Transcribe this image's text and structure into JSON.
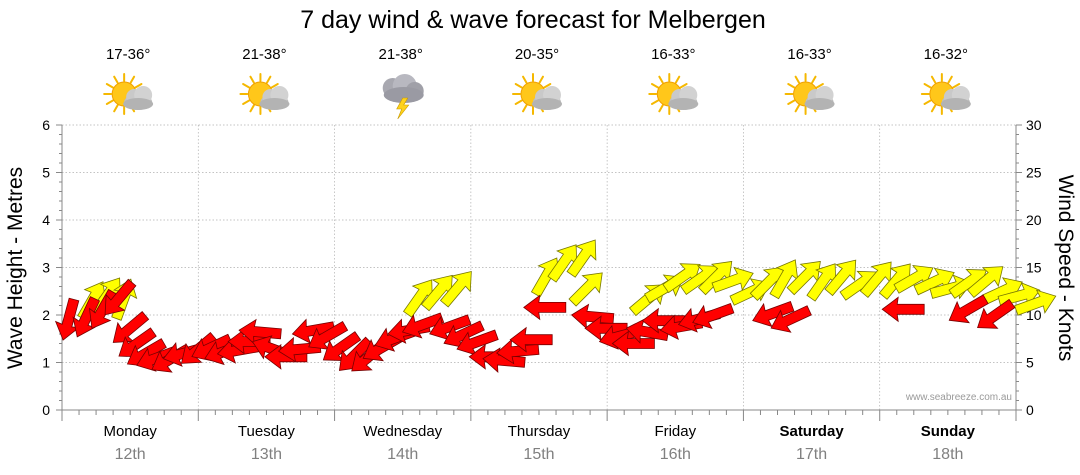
{
  "chart_data": {
    "type": "line",
    "title": "7 day wind & wave forecast for Melbergen",
    "y_left_label": "Wave Height - Metres",
    "y_right_label": "Wind Speed - Knots",
    "y_left_ticks": [
      "0",
      "1",
      "2",
      "3",
      "4",
      "5",
      "6"
    ],
    "y_right_ticks": [
      "0",
      "5",
      "10",
      "15",
      "20",
      "25",
      "30"
    ],
    "ylim_left": [
      0,
      6
    ],
    "ylim_right": [
      0,
      30
    ],
    "grid": true,
    "watermark": "www.seabreeze.com.au",
    "days": [
      {
        "day": "Monday",
        "date": "12th",
        "temp": "17-36°",
        "icon": "sun-cloud-icon",
        "bold": false
      },
      {
        "day": "Tuesday",
        "date": "13th",
        "temp": "21-38°",
        "icon": "sun-cloud-icon",
        "bold": false
      },
      {
        "day": "Wednesday",
        "date": "14th",
        "temp": "21-38°",
        "icon": "storm-cloud-icon",
        "bold": false
      },
      {
        "day": "Thursday",
        "date": "15th",
        "temp": "20-35°",
        "icon": "sun-cloud-icon",
        "bold": false
      },
      {
        "day": "Friday",
        "date": "16th",
        "temp": "16-33°",
        "icon": "sun-cloud-icon",
        "bold": false
      },
      {
        "day": "Saturday",
        "date": "17th",
        "temp": "16-33°",
        "icon": "sun-cloud-icon",
        "bold": true
      },
      {
        "day": "Sunday",
        "date": "18th",
        "temp": "16-32°",
        "icon": "sun-cloud-icon",
        "bold": true
      }
    ],
    "series": [
      {
        "key": "wind-gust",
        "color": "#ffff00",
        "stroke": "#777700",
        "unit": "knots",
        "points": [
          [
            0.22,
            11.5,
            210
          ],
          [
            0.33,
            12.0,
            215
          ],
          [
            0.45,
            11.6,
            200
          ],
          [
            2.62,
            11.8,
            215
          ],
          [
            2.76,
            12.4,
            220
          ],
          [
            2.9,
            12.8,
            220
          ],
          [
            3.55,
            14.0,
            210
          ],
          [
            3.68,
            15.5,
            215
          ],
          [
            3.82,
            16.0,
            215
          ],
          [
            3.85,
            12.8,
            225
          ],
          [
            4.3,
            11.7,
            230
          ],
          [
            4.42,
            12.8,
            240
          ],
          [
            4.55,
            14.0,
            235
          ],
          [
            4.68,
            13.8,
            235
          ],
          [
            4.8,
            14.0,
            225
          ],
          [
            4.92,
            13.6,
            250
          ],
          [
            5.05,
            12.4,
            245
          ],
          [
            5.18,
            13.4,
            225
          ],
          [
            5.3,
            13.8,
            210
          ],
          [
            5.45,
            14.0,
            225
          ],
          [
            5.58,
            13.5,
            215
          ],
          [
            5.72,
            14.0,
            220
          ],
          [
            5.85,
            13.2,
            235
          ],
          [
            5.98,
            13.8,
            220
          ],
          [
            6.12,
            13.6,
            220
          ],
          [
            6.25,
            13.8,
            240
          ],
          [
            6.4,
            13.5,
            245
          ],
          [
            6.52,
            12.8,
            255
          ],
          [
            6.65,
            13.4,
            235
          ],
          [
            6.78,
            13.6,
            230
          ],
          [
            6.9,
            12.5,
            245
          ],
          [
            7.02,
            12.0,
            255
          ],
          [
            7.14,
            11.2,
            250
          ]
        ]
      },
      {
        "key": "wind-speed",
        "color": "#ff0000",
        "stroke": "#770000",
        "unit": "knots",
        "points": [
          [
            0.05,
            9.6,
            15
          ],
          [
            0.18,
            9.8,
            25
          ],
          [
            0.3,
            10.6,
            30
          ],
          [
            0.42,
            11.8,
            40
          ],
          [
            0.5,
            8.6,
            50
          ],
          [
            0.55,
            7.0,
            55
          ],
          [
            0.62,
            6.0,
            60
          ],
          [
            0.7,
            5.5,
            70
          ],
          [
            0.8,
            5.4,
            60
          ],
          [
            0.9,
            6.0,
            75
          ],
          [
            1.0,
            6.4,
            50
          ],
          [
            1.1,
            6.6,
            65
          ],
          [
            1.2,
            6.2,
            70
          ],
          [
            1.3,
            6.3,
            80
          ],
          [
            1.38,
            7.2,
            90
          ],
          [
            1.46,
            8.2,
            95
          ],
          [
            1.55,
            6.4,
            110
          ],
          [
            1.65,
            5.6,
            90
          ],
          [
            1.75,
            6.4,
            85
          ],
          [
            1.85,
            8.4,
            80
          ],
          [
            1.95,
            7.8,
            60
          ],
          [
            2.05,
            6.6,
            55
          ],
          [
            2.15,
            5.8,
            45
          ],
          [
            2.25,
            5.6,
            50
          ],
          [
            2.35,
            6.6,
            60
          ],
          [
            2.45,
            7.6,
            70
          ],
          [
            2.55,
            8.4,
            80
          ],
          [
            2.65,
            9.0,
            70
          ],
          [
            2.85,
            8.8,
            70
          ],
          [
            2.95,
            8.0,
            65
          ],
          [
            3.05,
            7.2,
            70
          ],
          [
            3.15,
            5.6,
            90
          ],
          [
            3.25,
            5.2,
            95
          ],
          [
            3.35,
            6.2,
            85
          ],
          [
            3.45,
            7.4,
            90
          ],
          [
            3.55,
            10.8,
            90
          ],
          [
            3.9,
            9.8,
            95
          ],
          [
            4.0,
            8.6,
            90
          ],
          [
            4.1,
            7.8,
            75
          ],
          [
            4.2,
            7.0,
            90
          ],
          [
            4.3,
            8.2,
            100
          ],
          [
            4.42,
            9.4,
            90
          ],
          [
            4.55,
            8.8,
            80
          ],
          [
            4.68,
            9.6,
            75
          ],
          [
            4.78,
            10.0,
            70
          ],
          [
            5.22,
            10.2,
            70
          ],
          [
            5.35,
            9.6,
            65
          ],
          [
            6.18,
            10.6,
            90
          ],
          [
            6.65,
            10.6,
            60
          ],
          [
            6.85,
            10.0,
            55
          ]
        ]
      },
      {
        "key": "wave-height",
        "color": "#ff0000",
        "stroke": "#770000",
        "unit": "metres",
        "points": []
      }
    ]
  }
}
